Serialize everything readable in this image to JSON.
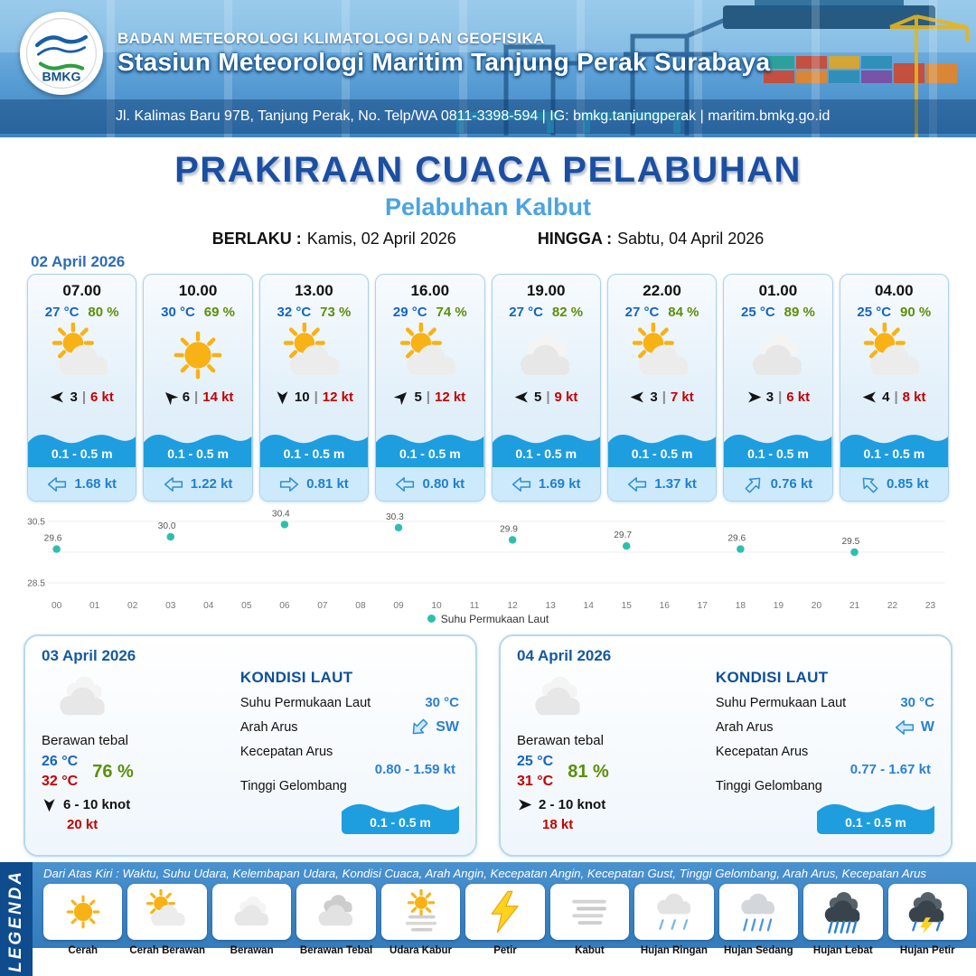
{
  "header": {
    "org": "BADAN METEOROLOGI KLIMATOLOGI DAN GEOFISIKA",
    "station": "Stasiun Meteorologi Maritim Tanjung Perak Surabaya",
    "address": "Jl. Kalimas Baru 97B, Tanjung Perak, No. Telp/WA 0811-3398-594 | IG: bmkg.tanjungperak | maritim.bmkg.go.id",
    "logo_text": "BMKG"
  },
  "title": {
    "main": "PRAKIRAAN CUACA PELABUHAN",
    "subtitle": "Pelabuhan Kalbut",
    "berlaku_label": "BERLAKU :",
    "berlaku_value": "Kamis, 02 April 2026",
    "hingga_label": "HINGGA :",
    "hingga_value": "Sabtu, 04 April 2026"
  },
  "ui": {
    "sep": "|"
  },
  "forecast": {
    "date": "02 April 2026",
    "cards": [
      {
        "time": "07.00",
        "temp": "27 °C",
        "rh": "80 %",
        "icon": "cerah-berawan",
        "wind_dir": "left",
        "wind_speed": "3",
        "wind_gust": "6 kt",
        "wave": "0.1 - 0.5 m",
        "cur_dir": "left",
        "cur_speed": "1.68 kt"
      },
      {
        "time": "10.00",
        "temp": "30 °C",
        "rh": "69 %",
        "icon": "cerah",
        "wind_dir": "up-left",
        "wind_speed": "6",
        "wind_gust": "14 kt",
        "wave": "0.1 - 0.5 m",
        "cur_dir": "left",
        "cur_speed": "1.22 kt"
      },
      {
        "time": "13.00",
        "temp": "32 °C",
        "rh": "73 %",
        "icon": "cerah-berawan",
        "wind_dir": "down",
        "wind_speed": "10",
        "wind_gust": "12 kt",
        "wave": "0.1 - 0.5 m",
        "cur_dir": "right",
        "cur_speed": "0.81 kt"
      },
      {
        "time": "16.00",
        "temp": "29 °C",
        "rh": "74 %",
        "icon": "cerah-berawan",
        "wind_dir": "up-right",
        "wind_speed": "5",
        "wind_gust": "12 kt",
        "wave": "0.1 - 0.5 m",
        "cur_dir": "left",
        "cur_speed": "0.80 kt"
      },
      {
        "time": "19.00",
        "temp": "27 °C",
        "rh": "82 %",
        "icon": "berawan",
        "wind_dir": "left",
        "wind_speed": "5",
        "wind_gust": "9 kt",
        "wave": "0.1 - 0.5 m",
        "cur_dir": "left",
        "cur_speed": "1.69 kt"
      },
      {
        "time": "22.00",
        "temp": "27 °C",
        "rh": "84 %",
        "icon": "cerah-berawan",
        "wind_dir": "left",
        "wind_speed": "3",
        "wind_gust": "7 kt",
        "wave": "0.1 - 0.5 m",
        "cur_dir": "left",
        "cur_speed": "1.37 kt"
      },
      {
        "time": "01.00",
        "temp": "25 °C",
        "rh": "89 %",
        "icon": "berawan",
        "wind_dir": "right",
        "wind_speed": "3",
        "wind_gust": "6 kt",
        "wave": "0.1 - 0.5 m",
        "cur_dir": "up-right",
        "cur_speed": "0.76 kt"
      },
      {
        "time": "04.00",
        "temp": "25 °C",
        "rh": "90 %",
        "icon": "cerah-berawan",
        "wind_dir": "left",
        "wind_speed": "4",
        "wind_gust": "8 kt",
        "wave": "0.1 - 0.5 m",
        "cur_dir": "up-left",
        "cur_speed": "0.85 kt"
      }
    ]
  },
  "chart_data": {
    "type": "scatter",
    "title": "",
    "x": [
      0,
      3,
      6,
      9,
      12,
      15,
      18,
      21
    ],
    "values": [
      29.6,
      30.0,
      30.4,
      30.3,
      29.9,
      29.7,
      29.6,
      29.5
    ],
    "x_ticks": [
      "00",
      "01",
      "02",
      "03",
      "04",
      "05",
      "06",
      "07",
      "08",
      "09",
      "10",
      "11",
      "12",
      "13",
      "14",
      "15",
      "16",
      "17",
      "18",
      "19",
      "20",
      "21",
      "22",
      "23"
    ],
    "ylim": [
      28.5,
      30.5
    ],
    "y_ticks": [
      "30.5",
      "28.5"
    ],
    "xlabel": "",
    "ylabel": "",
    "legend": "Suhu Permukaan Laut",
    "legend_position": "bottom",
    "grid": true,
    "dot_color": "#2dbfad"
  },
  "daily": [
    {
      "date": "03 April 2026",
      "icon": "berawan",
      "condition": "Berawan tebal",
      "temp_min": "26 °C",
      "temp_max": "32 °C",
      "rh": "76 %",
      "wind_dir": "down",
      "wind": "6  - 10 knot",
      "gust": "20 kt",
      "sea_title": "KONDISI LAUT",
      "sst_label": "Suhu Permukaan Laut",
      "sst": "30 °C",
      "arus_label": "Arah Arus",
      "arus_dir": "down-left",
      "arus_dir_label": "SW",
      "kec_label": "Kecepatan Arus",
      "kec": "0.80  - 1.59 kt",
      "gel_label": "Tinggi Gelombang",
      "gel": "0.1 - 0.5 m"
    },
    {
      "date": "04 April 2026",
      "icon": "berawan",
      "condition": "Berawan tebal",
      "temp_min": "25 °C",
      "temp_max": "31 °C",
      "rh": "81 %",
      "wind_dir": "right",
      "wind": "2  - 10 knot",
      "gust": "18 kt",
      "sea_title": "KONDISI LAUT",
      "sst_label": "Suhu Permukaan Laut",
      "sst": "30 °C",
      "arus_label": "Arah Arus",
      "arus_dir": "left",
      "arus_dir_label": "W",
      "kec_label": "Kecepatan Arus",
      "kec": "0.77 - 1.67 kt",
      "gel_label": "Tinggi Gelombang",
      "gel": "0.1 - 0.5 m"
    }
  ],
  "legend_section": {
    "legenda": "LEGENDA",
    "description": "Dari Atas Kiri : Waktu, Suhu Udara, Kelembapan Udara, Kondisi Cuaca, Arah Angin, Kecepatan Angin, Kecepatan Gust, Tinggi Gelombang, Arah Arus, Kecepatan Arus",
    "items": [
      {
        "icon": "cerah",
        "label": "Cerah"
      },
      {
        "icon": "cerah-berawan",
        "label": "Cerah Berawan"
      },
      {
        "icon": "berawan",
        "label": "Berawan"
      },
      {
        "icon": "berawan-tebal",
        "label": "Berawan Tebal"
      },
      {
        "icon": "udara-kabur",
        "label": "Udara Kabur"
      },
      {
        "icon": "petir",
        "label": "Petir"
      },
      {
        "icon": "kabut",
        "label": "Kabut"
      },
      {
        "icon": "hujan-ringan",
        "label": "Hujan Ringan"
      },
      {
        "icon": "hujan-sedang",
        "label": "Hujan Sedang"
      },
      {
        "icon": "hujan-lebat",
        "label": "Hujan Lebat"
      },
      {
        "icon": "hujan-petir",
        "label": "Hujan Petir"
      }
    ]
  },
  "colors": {
    "title_blue": "#1b4fa0",
    "subtitle_blue": "#4ba3e3",
    "temp_blue": "#1565c0",
    "humidity_green": "#5c8f0a",
    "gust_red": "#c40000",
    "wave_blue": "#1e9ede",
    "sst_dot_teal": "#2dbfad"
  }
}
